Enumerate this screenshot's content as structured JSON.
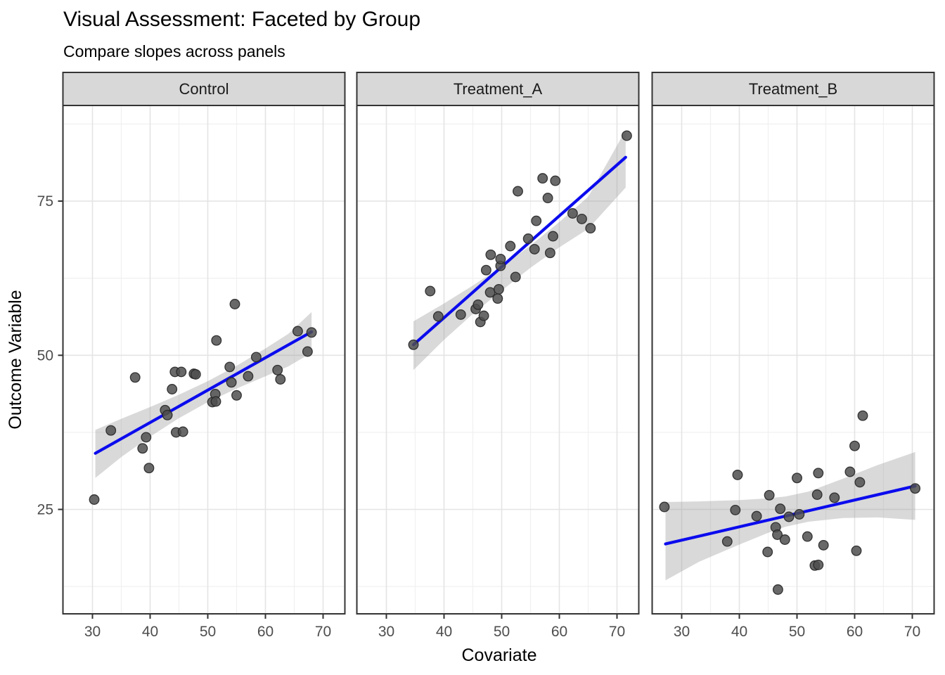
{
  "chart_data": {
    "type": "scatter",
    "title": "Visual Assessment: Faceted by Group",
    "subtitle": "Compare slopes across panels",
    "xlabel": "Covariate",
    "ylabel": "Outcome Variable",
    "legend_position": "none",
    "grid": true,
    "x_ticks": [
      30,
      40,
      50,
      60,
      70
    ],
    "y_ticks": [
      25,
      50,
      75
    ],
    "x_minor": [
      25,
      35,
      45,
      55,
      65
    ],
    "y_minor": [
      12.5,
      37.5,
      62.5,
      87.5
    ],
    "xlim": [
      24.9,
      73.8
    ],
    "ylim": [
      8.0,
      90.5
    ],
    "facets": [
      {
        "label": "Control",
        "points": [
          [
            30.3,
            26.6
          ],
          [
            33.2,
            37.8
          ],
          [
            37.4,
            46.4
          ],
          [
            38.7,
            34.9
          ],
          [
            39.3,
            36.7
          ],
          [
            39.8,
            31.7
          ],
          [
            42.6,
            41.1
          ],
          [
            43.0,
            40.3
          ],
          [
            43.8,
            44.5
          ],
          [
            44.3,
            47.3
          ],
          [
            44.5,
            37.5
          ],
          [
            45.4,
            47.3
          ],
          [
            45.7,
            37.6
          ],
          [
            47.6,
            47.0
          ],
          [
            47.9,
            46.9
          ],
          [
            50.8,
            42.4
          ],
          [
            51.3,
            43.7
          ],
          [
            51.4,
            42.5
          ],
          [
            51.5,
            52.4
          ],
          [
            53.8,
            48.1
          ],
          [
            54.1,
            45.6
          ],
          [
            54.7,
            58.3
          ],
          [
            55.0,
            43.5
          ],
          [
            57.0,
            46.6
          ],
          [
            58.4,
            49.7
          ],
          [
            62.1,
            47.6
          ],
          [
            62.6,
            46.1
          ],
          [
            65.6,
            53.9
          ],
          [
            67.3,
            50.6
          ],
          [
            68.0,
            53.7
          ]
        ],
        "trend": [
          [
            30.5,
            34.1
          ],
          [
            68.0,
            53.8
          ]
        ],
        "ci_band": [
          [
            30.5,
            30.1,
            37.9
          ],
          [
            35,
            33.5,
            39.7
          ],
          [
            40,
            36.8,
            41.6
          ],
          [
            45,
            39.8,
            43.6
          ],
          [
            50,
            42.4,
            45.8
          ],
          [
            55,
            44.6,
            48.3
          ],
          [
            60,
            46.6,
            51.1
          ],
          [
            64,
            48.2,
            53.5
          ],
          [
            68,
            50.4,
            57.0
          ]
        ]
      },
      {
        "label": "Treatment_A",
        "points": [
          [
            34.7,
            51.7
          ],
          [
            37.6,
            60.4
          ],
          [
            39.0,
            56.3
          ],
          [
            42.9,
            56.6
          ],
          [
            45.5,
            57.5
          ],
          [
            45.9,
            58.2
          ],
          [
            46.3,
            55.4
          ],
          [
            46.9,
            56.4
          ],
          [
            47.3,
            63.8
          ],
          [
            48.0,
            60.2
          ],
          [
            48.1,
            66.3
          ],
          [
            49.3,
            59.2
          ],
          [
            49.5,
            60.7
          ],
          [
            49.8,
            64.5
          ],
          [
            49.8,
            65.6
          ],
          [
            51.5,
            67.7
          ],
          [
            52.4,
            62.7
          ],
          [
            52.8,
            76.6
          ],
          [
            54.6,
            68.9
          ],
          [
            55.7,
            67.2
          ],
          [
            56.0,
            71.8
          ],
          [
            57.1,
            78.7
          ],
          [
            58.0,
            75.5
          ],
          [
            58.4,
            66.6
          ],
          [
            58.9,
            69.3
          ],
          [
            59.3,
            78.3
          ],
          [
            62.3,
            73.0
          ],
          [
            63.9,
            72.1
          ],
          [
            65.4,
            70.6
          ],
          [
            71.7,
            85.6
          ]
        ],
        "trend": [
          [
            34.7,
            51.7
          ],
          [
            71.5,
            82.1
          ]
        ],
        "ci_band": [
          [
            34.7,
            47.6,
            55.5
          ],
          [
            40,
            52.5,
            58.4
          ],
          [
            45,
            56.7,
            61.3
          ],
          [
            50,
            60.5,
            64.4
          ],
          [
            55,
            64.2,
            67.8
          ],
          [
            60,
            67.5,
            71.6
          ],
          [
            65,
            70.5,
            75.7
          ],
          [
            71.5,
            77.2,
            86.5
          ]
        ]
      },
      {
        "label": "Treatment_B",
        "points": [
          [
            27.0,
            25.4
          ],
          [
            37.9,
            19.8
          ],
          [
            39.3,
            24.9
          ],
          [
            39.7,
            30.6
          ],
          [
            43.0,
            23.9
          ],
          [
            44.9,
            18.1
          ],
          [
            45.2,
            27.3
          ],
          [
            46.3,
            22.1
          ],
          [
            46.6,
            20.9
          ],
          [
            46.7,
            12.0
          ],
          [
            47.1,
            25.1
          ],
          [
            47.9,
            20.1
          ],
          [
            48.6,
            23.8
          ],
          [
            50.0,
            30.1
          ],
          [
            50.4,
            24.2
          ],
          [
            51.8,
            20.6
          ],
          [
            53.1,
            15.9
          ],
          [
            53.5,
            27.4
          ],
          [
            53.7,
            16.0
          ],
          [
            53.7,
            30.9
          ],
          [
            54.6,
            19.2
          ],
          [
            56.5,
            26.9
          ],
          [
            59.2,
            31.1
          ],
          [
            60.0,
            35.3
          ],
          [
            60.3,
            18.3
          ],
          [
            60.9,
            29.4
          ],
          [
            61.4,
            40.2
          ],
          [
            70.5,
            28.4
          ]
        ],
        "trend": [
          [
            27.2,
            19.4
          ],
          [
            70.5,
            28.8
          ]
        ],
        "ci_band": [
          [
            27.2,
            13.5,
            26.2
          ],
          [
            33,
            16.5,
            26.3
          ],
          [
            40,
            19.3,
            26.5
          ],
          [
            45,
            21.2,
            26.8
          ],
          [
            48,
            22.2,
            27.1
          ],
          [
            52,
            23.0,
            27.9
          ],
          [
            58,
            23.6,
            30.0
          ],
          [
            64,
            23.7,
            32.2
          ],
          [
            70.5,
            23.3,
            34.3
          ]
        ]
      }
    ],
    "colors": {
      "trend": "#0b0bee",
      "point_fill": "#4f4f4f",
      "point_stroke": "#262626",
      "ci_band": "#9a9a9a",
      "strip_bg": "#d8d8d8",
      "panel_border": "#343434",
      "grid_major": "#e4e4e4",
      "grid_minor": "#f0f0f0",
      "tick_label": "#4d4d4d",
      "text": "#000000"
    }
  }
}
